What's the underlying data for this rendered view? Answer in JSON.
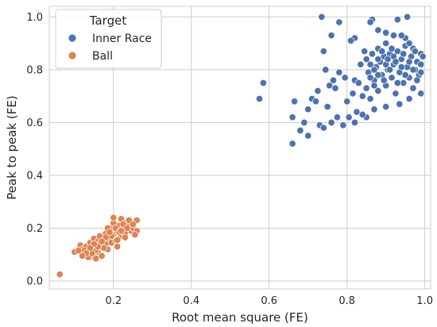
{
  "chart_data": {
    "type": "scatter",
    "title": "",
    "xlabel": "Root mean square (FE)",
    "ylabel": "Peak to peak (FE)",
    "xlim": [
      0.035,
      1.015
    ],
    "ylim": [
      -0.03,
      1.04
    ],
    "xticks": [
      "0.2",
      "0.4",
      "0.6",
      "0.8",
      "1.0"
    ],
    "xtick_values": [
      0.2,
      0.4,
      0.6,
      0.8,
      1.0
    ],
    "yticks": [
      "0.0",
      "0.2",
      "0.4",
      "0.6",
      "0.8",
      "1.0"
    ],
    "ytick_values": [
      0.0,
      0.2,
      0.4,
      0.6,
      0.8,
      1.0
    ],
    "grid": true,
    "legend": {
      "title": "Target",
      "placement": "top-left",
      "entries": [
        "Inner Race",
        "Ball"
      ]
    },
    "series": [
      {
        "name": "Inner Race",
        "color": "#4c72b0",
        "points": [
          [
            0.735,
            1.0
          ],
          [
            0.865,
            0.99
          ],
          [
            0.86,
            0.98
          ],
          [
            0.93,
            0.99
          ],
          [
            0.955,
            1.0
          ],
          [
            0.78,
            0.98
          ],
          [
            0.76,
            0.93
          ],
          [
            0.74,
            0.87
          ],
          [
            0.82,
            0.92
          ],
          [
            0.88,
            0.95
          ],
          [
            0.9,
            0.94
          ],
          [
            0.92,
            0.93
          ],
          [
            0.95,
            0.92
          ],
          [
            0.97,
            0.88
          ],
          [
            0.99,
            0.86
          ],
          [
            0.575,
            0.69
          ],
          [
            0.585,
            0.75
          ],
          [
            0.66,
            0.62
          ],
          [
            0.66,
            0.52
          ],
          [
            0.665,
            0.68
          ],
          [
            0.68,
            0.57
          ],
          [
            0.69,
            0.6
          ],
          [
            0.7,
            0.55
          ],
          [
            0.7,
            0.65
          ],
          [
            0.71,
            0.69
          ],
          [
            0.72,
            0.68
          ],
          [
            0.725,
            0.72
          ],
          [
            0.73,
            0.59
          ],
          [
            0.74,
            0.58
          ],
          [
            0.745,
            0.8
          ],
          [
            0.75,
            0.66
          ],
          [
            0.755,
            0.74
          ],
          [
            0.76,
            0.6
          ],
          [
            0.765,
            0.76
          ],
          [
            0.77,
            0.73
          ],
          [
            0.775,
            0.62
          ],
          [
            0.78,
            0.79
          ],
          [
            0.79,
            0.59
          ],
          [
            0.795,
            0.77
          ],
          [
            0.8,
            0.68
          ],
          [
            0.805,
            0.62
          ],
          [
            0.81,
            0.91
          ],
          [
            0.815,
            0.71
          ],
          [
            0.82,
            0.76
          ],
          [
            0.825,
            0.64
          ],
          [
            0.83,
            0.75
          ],
          [
            0.835,
            0.82
          ],
          [
            0.84,
            0.7
          ],
          [
            0.845,
            0.87
          ],
          [
            0.85,
            0.73
          ],
          [
            0.85,
            0.84
          ],
          [
            0.855,
            0.79
          ],
          [
            0.86,
            0.69
          ],
          [
            0.865,
            0.86
          ],
          [
            0.87,
            0.76
          ],
          [
            0.875,
            0.81
          ],
          [
            0.88,
            0.72
          ],
          [
            0.88,
            0.88
          ],
          [
            0.885,
            0.83
          ],
          [
            0.89,
            0.78
          ],
          [
            0.895,
            0.85
          ],
          [
            0.9,
            0.74
          ],
          [
            0.9,
            0.9
          ],
          [
            0.905,
            0.8
          ],
          [
            0.91,
            0.86
          ],
          [
            0.915,
            0.77
          ],
          [
            0.92,
            0.82
          ],
          [
            0.925,
            0.71
          ],
          [
            0.93,
            0.87
          ],
          [
            0.935,
            0.79
          ],
          [
            0.94,
            0.84
          ],
          [
            0.945,
            0.75
          ],
          [
            0.95,
            0.89
          ],
          [
            0.955,
            0.81
          ],
          [
            0.96,
            0.77
          ],
          [
            0.965,
            0.85
          ],
          [
            0.97,
            0.73
          ],
          [
            0.975,
            0.8
          ],
          [
            0.98,
            0.83
          ],
          [
            0.985,
            0.78
          ],
          [
            0.99,
            0.82
          ],
          [
            0.995,
            0.85
          ],
          [
            0.99,
            0.71
          ],
          [
            0.96,
            0.69
          ],
          [
            0.935,
            0.67
          ],
          [
            0.9,
            0.66
          ],
          [
            0.87,
            0.65
          ],
          [
            0.85,
            0.62
          ],
          [
            0.84,
            0.63
          ],
          [
            0.82,
            0.6
          ],
          [
            0.88,
            0.84
          ],
          [
            0.87,
            0.8
          ],
          [
            0.86,
            0.82
          ],
          [
            0.89,
            0.87
          ],
          [
            0.9,
            0.82
          ],
          [
            0.91,
            0.8
          ],
          [
            0.92,
            0.85
          ],
          [
            0.86,
            0.77
          ],
          [
            0.87,
            0.74
          ],
          [
            0.88,
            0.78
          ],
          [
            0.895,
            0.76
          ],
          [
            0.905,
            0.84
          ],
          [
            0.915,
            0.88
          ],
          [
            0.925,
            0.83
          ],
          [
            0.93,
            0.75
          ],
          [
            0.94,
            0.81
          ],
          [
            0.945,
            0.86
          ],
          [
            0.95,
            0.78
          ],
          [
            0.96,
            0.83
          ],
          [
            0.97,
            0.8
          ],
          [
            0.98,
            0.76
          ],
          [
            0.99,
            0.79
          ],
          [
            0.975,
            0.87
          ],
          [
            0.96,
            0.9
          ],
          [
            0.94,
            0.93
          ]
        ]
      },
      {
        "name": "Ball",
        "color": "#dd8452",
        "points": [
          [
            0.062,
            0.025
          ],
          [
            0.1,
            0.11
          ],
          [
            0.115,
            0.135
          ],
          [
            0.12,
            0.12
          ],
          [
            0.125,
            0.1
          ],
          [
            0.13,
            0.13
          ],
          [
            0.135,
            0.11
          ],
          [
            0.14,
            0.145
          ],
          [
            0.14,
            0.09
          ],
          [
            0.145,
            0.12
          ],
          [
            0.15,
            0.16
          ],
          [
            0.15,
            0.1
          ],
          [
            0.155,
            0.135
          ],
          [
            0.16,
            0.15
          ],
          [
            0.16,
            0.11
          ],
          [
            0.165,
            0.17
          ],
          [
            0.17,
            0.13
          ],
          [
            0.17,
            0.095
          ],
          [
            0.175,
            0.155
          ],
          [
            0.18,
            0.14
          ],
          [
            0.18,
            0.18
          ],
          [
            0.185,
            0.12
          ],
          [
            0.19,
            0.16
          ],
          [
            0.19,
            0.2
          ],
          [
            0.195,
            0.145
          ],
          [
            0.2,
            0.175
          ],
          [
            0.2,
            0.22
          ],
          [
            0.205,
            0.155
          ],
          [
            0.21,
            0.19
          ],
          [
            0.21,
            0.13
          ],
          [
            0.215,
            0.21
          ],
          [
            0.22,
            0.17
          ],
          [
            0.22,
            0.235
          ],
          [
            0.225,
            0.2
          ],
          [
            0.23,
            0.18
          ],
          [
            0.23,
            0.22
          ],
          [
            0.24,
            0.21
          ],
          [
            0.245,
            0.19
          ],
          [
            0.25,
            0.2
          ],
          [
            0.26,
            0.23
          ],
          [
            0.26,
            0.19
          ],
          [
            0.2,
            0.24
          ],
          [
            0.185,
            0.2
          ],
          [
            0.155,
            0.115
          ],
          [
            0.135,
            0.09
          ],
          [
            0.145,
            0.105
          ],
          [
            0.125,
            0.115
          ],
          [
            0.165,
            0.14
          ],
          [
            0.175,
            0.125
          ],
          [
            0.195,
            0.17
          ],
          [
            0.205,
            0.2
          ],
          [
            0.215,
            0.185
          ],
          [
            0.225,
            0.215
          ],
          [
            0.235,
            0.2
          ],
          [
            0.24,
            0.23
          ],
          [
            0.19,
            0.185
          ],
          [
            0.18,
            0.165
          ],
          [
            0.17,
            0.15
          ],
          [
            0.16,
            0.13
          ],
          [
            0.15,
            0.14
          ],
          [
            0.14,
            0.125
          ],
          [
            0.13,
            0.105
          ],
          [
            0.12,
            0.095
          ],
          [
            0.11,
            0.115
          ],
          [
            0.155,
            0.085
          ],
          [
            0.21,
            0.155
          ],
          [
            0.22,
            0.19
          ],
          [
            0.23,
            0.165
          ],
          [
            0.25,
            0.215
          ],
          [
            0.255,
            0.175
          ]
        ]
      }
    ]
  }
}
